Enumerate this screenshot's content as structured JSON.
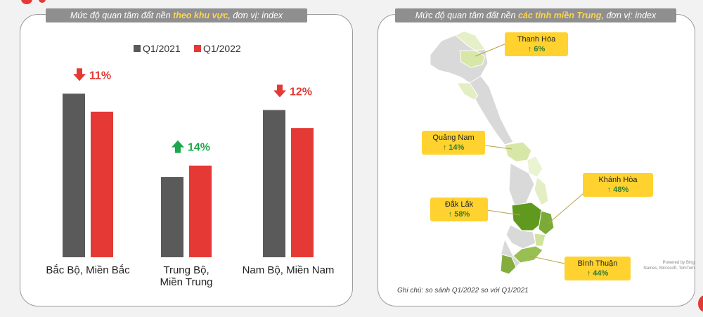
{
  "left_panel": {
    "title_pre": "Mức độ quan tâm đất nền ",
    "title_hl": "theo khu vực",
    "title_post": ", đơn vị: index"
  },
  "chart_data": {
    "type": "bar",
    "categories": [
      "Bắc Bộ, Miền Bắc",
      "Trung Bộ, Miền Trung",
      "Nam Bộ, Miền Nam"
    ],
    "series": [
      {
        "name": "Q1/2021",
        "values": [
          100,
          49,
          90
        ],
        "color": "#5a5a5a"
      },
      {
        "name": "Q1/2022",
        "values": [
          89,
          56,
          79
        ],
        "color": "#e53935"
      }
    ],
    "ylim": [
      0,
      110
    ],
    "grid": false,
    "legend": "top",
    "annotations": [
      {
        "category": "Bắc Bộ, Miền Bắc",
        "direction": "down",
        "text": "11%",
        "color": "#e53935"
      },
      {
        "category": "Trung Bộ, Miền Trung",
        "direction": "up",
        "text": "14%",
        "color": "#1aa84a"
      },
      {
        "category": "Nam Bộ, Miền Nam",
        "direction": "down",
        "text": "12%",
        "color": "#e53935"
      }
    ]
  },
  "right_panel": {
    "title_pre": "Mức độ quan tâm đất nền ",
    "title_hl": "các tỉnh miền Trung",
    "title_post": ", đơn vị: index",
    "callouts": [
      {
        "name": "Thanh Hóa",
        "change": "↑ 6%"
      },
      {
        "name": "Quảng Nam",
        "change": "↑ 14%"
      },
      {
        "name": "Khánh Hòa",
        "change": "↑ 48%"
      },
      {
        "name": "Đắk Lắk",
        "change": "↑ 58%"
      },
      {
        "name": "Bình Thuận",
        "change": "↑ 44%"
      }
    ],
    "note": "Ghi chú: so sánh Q1/2022 so với Q1/2021",
    "credit": "Powered by Bing\nNames, Microsoft, TomTom"
  }
}
